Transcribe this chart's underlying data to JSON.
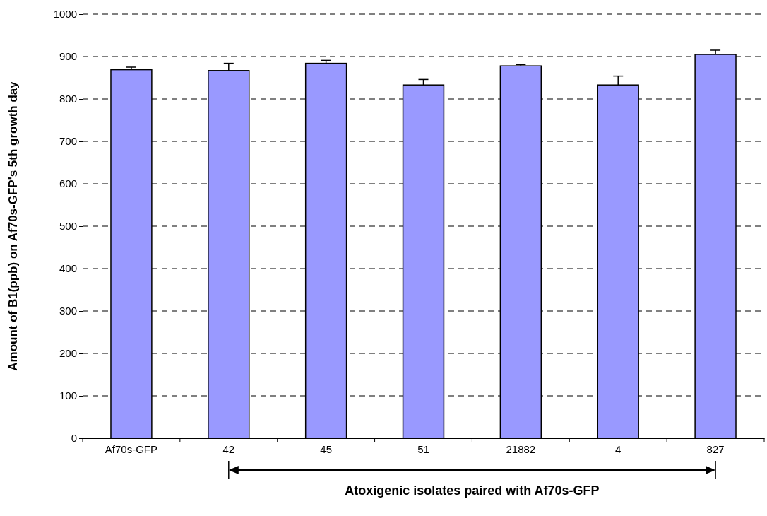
{
  "chart_data": {
    "type": "bar",
    "xlabel": "Atoxigenic isolates paired with Af70s-GFP",
    "ylabel": "Amount of B1(ppb) on Af70s-GFP's 5th growth day",
    "categories": [
      "Af70s-GFP",
      "42",
      "45",
      "51",
      "21882",
      "4",
      "827"
    ],
    "values": [
      869,
      867,
      884,
      833,
      878,
      833,
      905
    ],
    "errors": [
      6,
      17,
      7,
      13,
      3,
      21,
      10
    ],
    "color": "#9999ff",
    "ylim": [
      0,
      1000
    ],
    "yticks": [
      0,
      100,
      200,
      300,
      400,
      500,
      600,
      700,
      800,
      900,
      1000
    ],
    "grid": "y"
  }
}
